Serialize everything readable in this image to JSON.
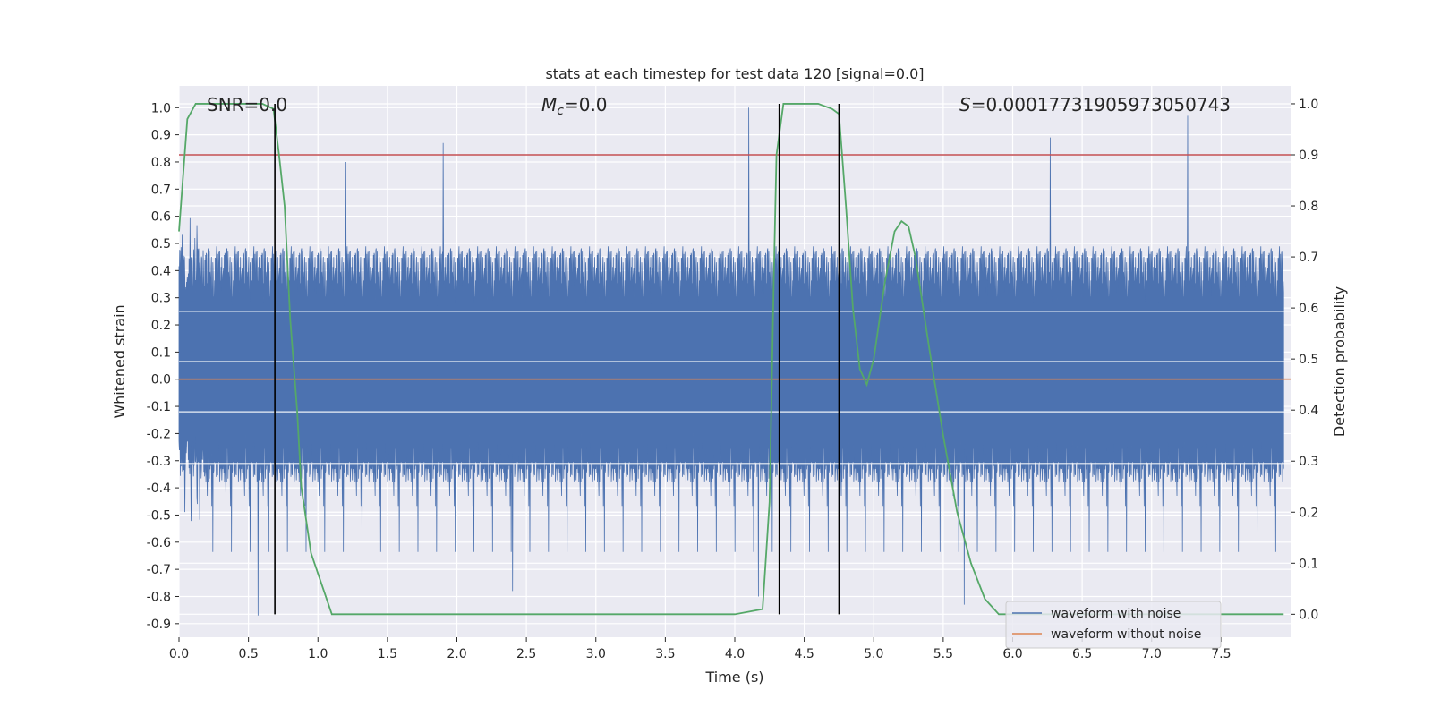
{
  "chart_data": {
    "type": "line",
    "title": "stats at each timestep for test data 120 [signal=0.0]",
    "xlabel": "Time (s)",
    "ylabel": "Whitened strain",
    "y2label": "Detection probability",
    "xlim": [
      0.0,
      8.0
    ],
    "ylim": [
      -0.95,
      1.08
    ],
    "y2lim": [
      -0.045,
      1.035
    ],
    "x_ticks": [
      0.0,
      0.5,
      1.0,
      1.5,
      2.0,
      2.5,
      3.0,
      3.5,
      4.0,
      4.5,
      5.0,
      5.5,
      6.0,
      6.5,
      7.0,
      7.5
    ],
    "y_ticks": [
      -0.9,
      -0.8,
      -0.7,
      -0.6,
      -0.5,
      -0.4,
      -0.3,
      -0.2,
      -0.1,
      0.0,
      0.1,
      0.2,
      0.3,
      0.4,
      0.5,
      0.6,
      0.7,
      0.8,
      0.9,
      1.0
    ],
    "y2_ticks": [
      0.0,
      0.1,
      0.2,
      0.3,
      0.4,
      0.5,
      0.6,
      0.7,
      0.8,
      0.9,
      1.0
    ],
    "grid": true,
    "legend_position": "lower-right",
    "annotations": {
      "snr": "SNR=0.0",
      "mc_symbol": "M",
      "mc_sub": "c",
      "mc_value": "=0.0",
      "s_symbol": "S",
      "s_value": "=0.00017731905973050743"
    },
    "series": [
      {
        "name": "waveform with noise",
        "axis": "left",
        "color": "#4c72b0",
        "description_of_extent": "whitened noisy strain, dense, peaks",
        "peaks": [
          {
            "x": 0.57,
            "y": -0.87
          },
          {
            "x": 1.2,
            "y": 0.8
          },
          {
            "x": 1.9,
            "y": 0.87
          },
          {
            "x": 2.4,
            "y": -0.78
          },
          {
            "x": 4.1,
            "y": 1.0
          },
          {
            "x": 4.17,
            "y": -0.8
          },
          {
            "x": 5.65,
            "y": -0.83
          },
          {
            "x": 6.27,
            "y": 0.89
          },
          {
            "x": 7.26,
            "y": 0.97
          }
        ]
      },
      {
        "name": "waveform without noise",
        "axis": "left",
        "color": "#dd8452",
        "x": [
          0.0,
          8.0
        ],
        "y": [
          0.0,
          0.0
        ]
      },
      {
        "name": "",
        "axis": "right",
        "color": "#55a868",
        "x": [
          0.0,
          0.06,
          0.12,
          0.2,
          0.3,
          0.45,
          0.6,
          0.68,
          0.72,
          0.76,
          0.8,
          0.85,
          0.88,
          0.95,
          1.0,
          1.1,
          1.5,
          2.0,
          3.0,
          4.0,
          4.2,
          4.25,
          4.28,
          4.3,
          4.35,
          4.4,
          4.6,
          4.7,
          4.75,
          4.8,
          4.85,
          4.9,
          4.95,
          5.0,
          5.08,
          5.15,
          5.2,
          5.25,
          5.3,
          5.4,
          5.5,
          5.6,
          5.7,
          5.8,
          5.9,
          6.0,
          7.0,
          7.95
        ],
        "y": [
          0.75,
          0.97,
          1.0,
          1.0,
          1.0,
          1.0,
          1.0,
          0.99,
          0.9,
          0.8,
          0.58,
          0.4,
          0.25,
          0.12,
          0.08,
          0.0,
          0.0,
          0.0,
          0.0,
          0.0,
          0.01,
          0.22,
          0.65,
          0.9,
          1.0,
          1.0,
          1.0,
          0.99,
          0.98,
          0.8,
          0.6,
          0.48,
          0.45,
          0.5,
          0.65,
          0.75,
          0.77,
          0.76,
          0.7,
          0.52,
          0.35,
          0.2,
          0.1,
          0.03,
          0.0,
          0.0,
          0.0,
          0.0
        ]
      }
    ],
    "hlines": [
      {
        "y2": 0.9,
        "color": "#c44e52"
      }
    ],
    "vlines": [
      {
        "x": 0.69,
        "color": "#000000"
      },
      {
        "x": 4.32,
        "color": "#000000"
      },
      {
        "x": 4.75,
        "color": "#000000"
      }
    ]
  }
}
